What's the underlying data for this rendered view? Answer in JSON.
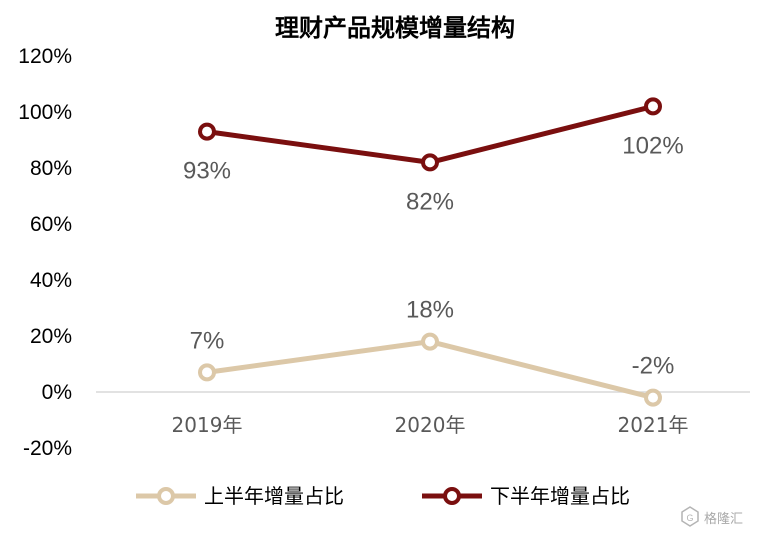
{
  "chart_data": {
    "type": "line",
    "title": "理财产品规模增量结构",
    "categories": [
      "2019年",
      "2020年",
      "2021年"
    ],
    "ylim": [
      -20,
      120
    ],
    "yticks": [
      "120%",
      "100%",
      "80%",
      "60%",
      "40%",
      "20%",
      "0%",
      "-20%"
    ],
    "ytick_values": [
      120,
      100,
      80,
      60,
      40,
      20,
      0,
      -20
    ],
    "grid": false,
    "legend_position": "bottom",
    "series": [
      {
        "name": "上半年增量占比",
        "values": [
          7,
          18,
          -2
        ],
        "labels": [
          "7%",
          "18%",
          "-2%"
        ],
        "color": "#DCC8A8",
        "label_position": "above"
      },
      {
        "name": "下半年增量占比",
        "values": [
          93,
          82,
          102
        ],
        "labels": [
          "93%",
          "82%",
          "102%"
        ],
        "color": "#7A0F0F",
        "label_position": "below"
      }
    ]
  },
  "watermark": {
    "text": "格隆汇",
    "icon": "gelonghui-logo-icon"
  }
}
